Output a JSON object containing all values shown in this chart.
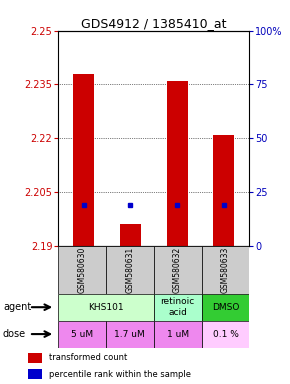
{
  "title": "GDS4912 / 1385410_at",
  "samples": [
    "GSM580630",
    "GSM580631",
    "GSM580632",
    "GSM580633"
  ],
  "ymin": 2.19,
  "ymax": 2.25,
  "yticks": [
    2.19,
    2.205,
    2.22,
    2.235,
    2.25
  ],
  "ytick_labels": [
    "2.19",
    "2.205",
    "2.22",
    "2.235",
    "2.25"
  ],
  "y2ticks": [
    0,
    25,
    50,
    75,
    100
  ],
  "y2tick_labels": [
    "0",
    "25",
    "50",
    "75",
    "100%"
  ],
  "bar_tops": [
    2.238,
    2.196,
    2.236,
    2.221
  ],
  "bar_bottom": 2.19,
  "bar_color": "#cc0000",
  "percentile_values": [
    2.2015,
    2.2015,
    2.2015,
    2.2015
  ],
  "percentile_color": "#0000cc",
  "agent_spans": [
    [
      0,
      2,
      "KHS101",
      "#ccffcc"
    ],
    [
      2,
      3,
      "retinoic\nacid",
      "#aaffcc"
    ],
    [
      3,
      4,
      "DMSO",
      "#33cc33"
    ]
  ],
  "doses": [
    "5 uM",
    "1.7 uM",
    "1 uM",
    "0.1 %"
  ],
  "dose_colors": [
    "#ee88ee",
    "#ee88ee",
    "#ee88ee",
    "#ffccff"
  ],
  "sample_bg_color": "#cccccc",
  "left_axis_color": "#cc0000",
  "right_axis_color": "#0000bb",
  "title_fontsize": 9
}
